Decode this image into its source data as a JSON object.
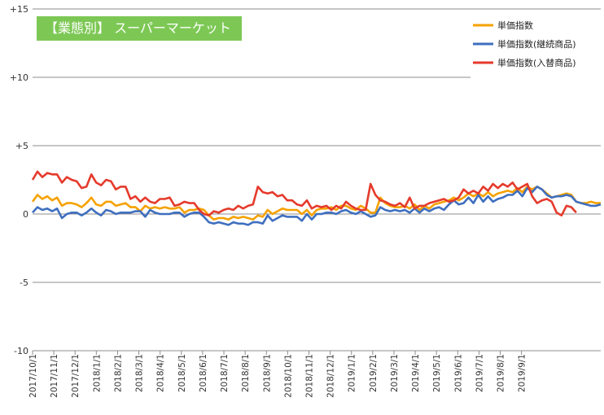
{
  "chart_data": {
    "type": "line",
    "title": "【業態別】 スーパーマーケット",
    "ylim": [
      -10,
      15
    ],
    "y_ticks": [
      "+15",
      "+10",
      "+5",
      "0",
      "-5",
      "-10"
    ],
    "x_tick_labels": [
      "2017/10/1",
      "2017/11/1",
      "2017/12/1",
      "2018/1/1",
      "2018/2/1",
      "2018/3/1",
      "2018/4/1",
      "2018/5/1",
      "2018/6/1",
      "2018/7/1",
      "2018/8/1",
      "2018/9/1",
      "2018/10/1",
      "2018/11/1",
      "2018/12/1",
      "2019/1/1",
      "2019/2/1",
      "2019/3/1",
      "2019/4/1",
      "2019/5/1",
      "2019/6/1",
      "2019/7/1",
      "2019/8/1",
      "2019/9/1"
    ],
    "grid": "horizontal",
    "legend_position": "top-right",
    "series": [
      {
        "name": "単価指数",
        "color": "#f5a200",
        "values": [
          0.9,
          1.4,
          1.1,
          1.3,
          1.0,
          1.2,
          0.6,
          0.8,
          0.8,
          0.7,
          0.5,
          0.8,
          1.2,
          0.7,
          0.6,
          0.9,
          0.9,
          0.6,
          0.7,
          0.8,
          0.5,
          0.5,
          0.2,
          0.6,
          0.4,
          0.5,
          0.4,
          0.5,
          0.4,
          0.4,
          0.5,
          0.1,
          0.3,
          0.3,
          0.4,
          0.3,
          -0.1,
          -0.4,
          -0.3,
          -0.3,
          -0.4,
          -0.2,
          -0.3,
          -0.2,
          -0.3,
          -0.4,
          -0.1,
          -0.2,
          0.3,
          0.0,
          0.2,
          0.4,
          0.3,
          0.3,
          0.3,
          0.0,
          0.3,
          -0.1,
          0.3,
          0.4,
          0.4,
          0.5,
          0.3,
          0.6,
          0.6,
          0.4,
          0.3,
          0.6,
          0.4,
          0.1,
          0.1,
          1.2,
          0.8,
          0.6,
          0.5,
          0.5,
          0.6,
          0.4,
          0.7,
          0.3,
          0.6,
          0.4,
          0.7,
          0.8,
          0.9,
          1.0,
          1.2,
          1.0,
          1.2,
          1.5,
          1.3,
          1.5,
          1.3,
          1.6,
          1.3,
          1.5,
          1.6,
          1.7,
          1.6,
          1.9,
          1.6,
          2.0,
          1.8,
          2.0,
          1.8,
          1.5,
          1.2,
          1.3,
          1.4,
          1.5,
          1.4,
          0.9,
          0.8,
          0.8,
          0.9,
          0.8,
          0.8
        ]
      },
      {
        "name": "単価指数(継続商品)",
        "color": "#3f6fbf",
        "values": [
          0.1,
          0.5,
          0.3,
          0.4,
          0.2,
          0.4,
          -0.3,
          0.0,
          0.1,
          0.1,
          -0.1,
          0.1,
          0.4,
          0.1,
          -0.1,
          0.3,
          0.2,
          0.0,
          0.1,
          0.1,
          0.1,
          0.2,
          0.2,
          -0.2,
          0.3,
          0.1,
          0.0,
          0.0,
          0.0,
          0.1,
          0.1,
          -0.2,
          0.0,
          0.1,
          0.1,
          -0.2,
          -0.6,
          -0.7,
          -0.6,
          -0.7,
          -0.8,
          -0.6,
          -0.7,
          -0.7,
          -0.8,
          -0.6,
          -0.6,
          -0.7,
          -0.1,
          -0.5,
          -0.3,
          -0.1,
          -0.2,
          -0.2,
          -0.2,
          -0.5,
          0.0,
          -0.4,
          0.0,
          0.0,
          0.1,
          0.1,
          0.0,
          0.2,
          0.3,
          0.1,
          0.0,
          0.2,
          0.0,
          -0.2,
          -0.1,
          0.5,
          0.3,
          0.2,
          0.3,
          0.2,
          0.3,
          0.1,
          0.4,
          0.1,
          0.4,
          0.2,
          0.4,
          0.5,
          0.3,
          0.7,
          1.0,
          0.7,
          0.8,
          1.2,
          0.8,
          1.4,
          0.9,
          1.3,
          0.9,
          1.1,
          1.2,
          1.4,
          1.4,
          1.7,
          1.3,
          1.9,
          1.6,
          2.0,
          1.8,
          1.4,
          1.2,
          1.3,
          1.3,
          1.4,
          1.3,
          0.9,
          0.8,
          0.7,
          0.6,
          0.6,
          0.7
        ]
      },
      {
        "name": "単価指数(入替商品)",
        "color": "#e53a2c",
        "values": [
          2.5,
          3.1,
          2.7,
          3.0,
          2.9,
          2.9,
          2.3,
          2.7,
          2.5,
          2.4,
          1.9,
          2.0,
          2.9,
          2.3,
          2.1,
          2.5,
          2.4,
          1.8,
          2.0,
          2.0,
          1.1,
          1.3,
          0.9,
          1.2,
          0.9,
          0.8,
          1.1,
          1.1,
          1.2,
          0.6,
          0.7,
          0.9,
          0.8,
          0.8,
          0.3,
          0.0,
          -0.1,
          0.2,
          0.1,
          0.3,
          0.4,
          0.3,
          0.6,
          0.4,
          0.6,
          0.7,
          2.0,
          1.6,
          1.5,
          1.6,
          1.3,
          1.4,
          1.0,
          1.0,
          0.7,
          0.6,
          1.0,
          0.4,
          0.6,
          0.5,
          0.6,
          0.3,
          0.6,
          0.4,
          0.9,
          0.6,
          0.4,
          0.3,
          0.3,
          2.2,
          1.4,
          1.0,
          0.9,
          0.7,
          0.6,
          0.8,
          0.5,
          1.2,
          0.4,
          0.6,
          0.6,
          0.8,
          0.9,
          1.0,
          1.1,
          0.9,
          1.0,
          1.2,
          1.8,
          1.5,
          1.7,
          1.5,
          2.0,
          1.7,
          2.2,
          1.9,
          2.2,
          2.0,
          2.3,
          1.8,
          2.0,
          2.2,
          1.3,
          0.8,
          1.0,
          1.1,
          0.9,
          0.1,
          -0.1,
          0.6,
          0.5,
          0.1
        ]
      }
    ]
  }
}
